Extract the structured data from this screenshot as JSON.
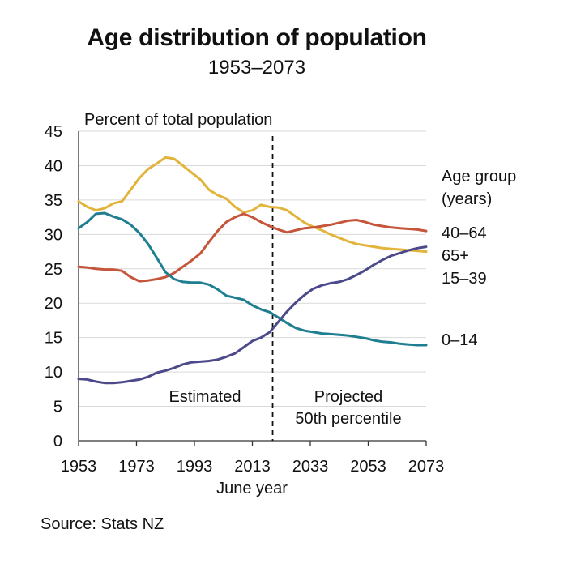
{
  "title": "Age distribution of population",
  "subtitle": "1953–2073",
  "source": "Source: Stats NZ",
  "chart_data": {
    "type": "line",
    "ylabel": "Percent of total population",
    "xlabel": "June year",
    "xlim": [
      1953,
      2073
    ],
    "ylim": [
      0,
      45
    ],
    "x_ticks": [
      1953,
      1973,
      1993,
      2013,
      2033,
      2053,
      2073
    ],
    "y_ticks": [
      0,
      5,
      10,
      15,
      20,
      25,
      30,
      35,
      40,
      45
    ],
    "grid": "horizontal",
    "legend_title": "Age group\n(years)",
    "divider": {
      "x": 2020,
      "style": "dashed"
    },
    "annotations": {
      "estimated": "Estimated",
      "projected": "Projected",
      "percentile": "50th percentile"
    },
    "series": [
      {
        "name": "15–39",
        "color": "#E2B43B",
        "x": [
          1953,
          1956,
          1959,
          1962,
          1965,
          1968,
          1971,
          1974,
          1977,
          1980,
          1983,
          1986,
          1989,
          1992,
          1995,
          1998,
          2001,
          2004,
          2007,
          2010,
          2013,
          2016,
          2019,
          2022,
          2025,
          2028,
          2031,
          2034,
          2037,
          2040,
          2043,
          2046,
          2049,
          2052,
          2055,
          2058,
          2061,
          2064,
          2067,
          2070,
          2073
        ],
        "values": [
          34.8,
          34.0,
          33.5,
          33.8,
          34.5,
          34.8,
          36.5,
          38.2,
          39.5,
          40.3,
          41.2,
          41.0,
          40.0,
          39.0,
          38.0,
          36.5,
          35.7,
          35.2,
          34.0,
          33.2,
          33.5,
          34.3,
          34.0,
          33.9,
          33.5,
          32.6,
          31.7,
          31.1,
          30.6,
          30.0,
          29.5,
          29.0,
          28.6,
          28.4,
          28.2,
          28.0,
          27.9,
          27.8,
          27.7,
          27.6,
          27.5
        ]
      },
      {
        "name": "40–64",
        "color": "#C5553B",
        "x": [
          1953,
          1956,
          1959,
          1962,
          1965,
          1968,
          1971,
          1974,
          1977,
          1980,
          1983,
          1986,
          1989,
          1992,
          1995,
          1998,
          2001,
          2004,
          2007,
          2010,
          2013,
          2016,
          2019,
          2022,
          2025,
          2028,
          2031,
          2034,
          2037,
          2040,
          2043,
          2046,
          2049,
          2052,
          2055,
          2058,
          2061,
          2064,
          2067,
          2070,
          2073
        ],
        "values": [
          25.3,
          25.2,
          25.0,
          24.9,
          24.9,
          24.7,
          23.8,
          23.2,
          23.3,
          23.5,
          23.8,
          24.4,
          25.3,
          26.2,
          27.2,
          28.9,
          30.5,
          31.8,
          32.5,
          33.0,
          32.5,
          31.8,
          31.2,
          30.7,
          30.3,
          30.6,
          30.9,
          31.0,
          31.2,
          31.4,
          31.7,
          32.0,
          32.1,
          31.8,
          31.4,
          31.2,
          31.0,
          30.9,
          30.8,
          30.7,
          30.5
        ]
      },
      {
        "name": "65+",
        "color": "#4D4A8C",
        "x": [
          1953,
          1956,
          1959,
          1962,
          1965,
          1968,
          1971,
          1974,
          1977,
          1980,
          1983,
          1986,
          1989,
          1992,
          1995,
          1998,
          2001,
          2004,
          2007,
          2010,
          2013,
          2016,
          2019,
          2022,
          2025,
          2028,
          2031,
          2034,
          2037,
          2040,
          2043,
          2046,
          2049,
          2052,
          2055,
          2058,
          2061,
          2064,
          2067,
          2070,
          2073
        ],
        "values": [
          9.0,
          8.9,
          8.6,
          8.4,
          8.4,
          8.5,
          8.7,
          8.9,
          9.3,
          9.9,
          10.2,
          10.6,
          11.1,
          11.4,
          11.5,
          11.6,
          11.8,
          12.2,
          12.7,
          13.6,
          14.5,
          15.0,
          15.8,
          17.3,
          18.8,
          20.1,
          21.2,
          22.1,
          22.6,
          22.9,
          23.1,
          23.5,
          24.1,
          24.8,
          25.6,
          26.3,
          26.9,
          27.3,
          27.7,
          28.0,
          28.2
        ]
      },
      {
        "name": "0–14",
        "color": "#1F7F91",
        "x": [
          1953,
          1956,
          1959,
          1962,
          1965,
          1968,
          1971,
          1974,
          1977,
          1980,
          1983,
          1986,
          1989,
          1992,
          1995,
          1998,
          2001,
          2004,
          2007,
          2010,
          2013,
          2016,
          2019,
          2022,
          2025,
          2028,
          2031,
          2034,
          2037,
          2040,
          2043,
          2046,
          2049,
          2052,
          2055,
          2058,
          2061,
          2064,
          2067,
          2070,
          2073
        ],
        "values": [
          30.9,
          31.8,
          33.0,
          33.1,
          32.6,
          32.2,
          31.4,
          30.2,
          28.6,
          26.6,
          24.5,
          23.5,
          23.1,
          23.0,
          23.0,
          22.7,
          22.0,
          21.1,
          20.8,
          20.5,
          19.7,
          19.1,
          18.7,
          17.9,
          17.1,
          16.4,
          16.0,
          15.8,
          15.6,
          15.5,
          15.4,
          15.3,
          15.1,
          14.9,
          14.6,
          14.4,
          14.3,
          14.1,
          14.0,
          13.9,
          13.9
        ]
      }
    ],
    "label_order": [
      "40–64",
      "65+",
      "15–39",
      "0–14"
    ]
  }
}
